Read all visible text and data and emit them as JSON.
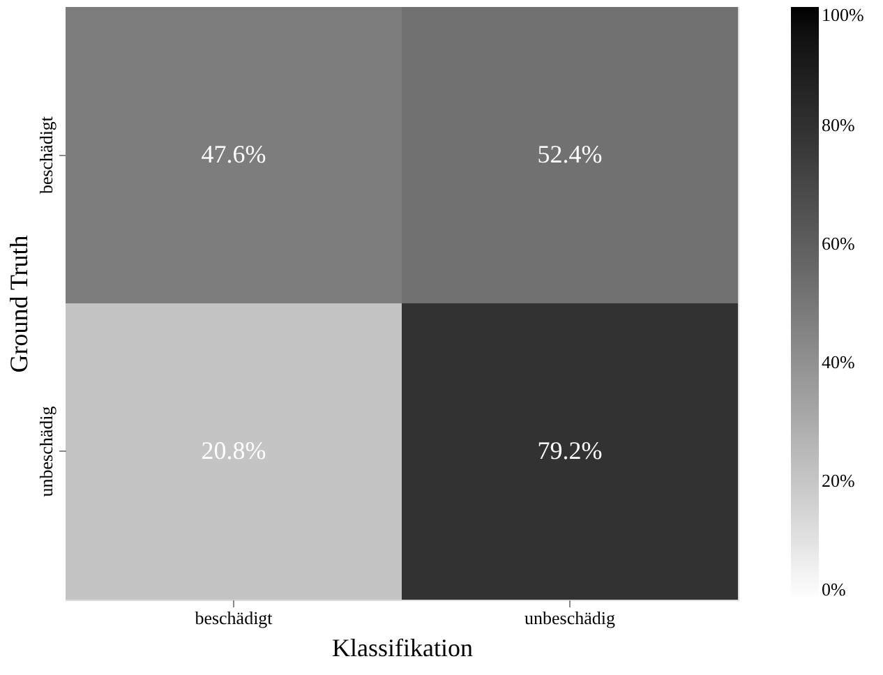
{
  "chart_data": {
    "type": "heatmap",
    "xlabel": "Klassifikation",
    "ylabel": "Ground Truth",
    "categories": [
      "beschädigt",
      "unbeschädig"
    ],
    "y_categories": [
      "beschädigt",
      "unbeschädig"
    ],
    "cells": [
      [
        47.6,
        52.4
      ],
      [
        20.8,
        79.2
      ]
    ],
    "cell_labels": [
      [
        "47.6%",
        "52.4%"
      ],
      [
        "20.8%",
        "79.2%"
      ]
    ],
    "clim": [
      0,
      100
    ],
    "cticks": [
      {
        "value": 0,
        "label": "0%"
      },
      {
        "value": 20,
        "label": "20%"
      },
      {
        "value": 40,
        "label": "40%"
      },
      {
        "value": 60,
        "label": "60%"
      },
      {
        "value": 80,
        "label": "80%"
      },
      {
        "value": 100,
        "label": "100%"
      }
    ]
  }
}
